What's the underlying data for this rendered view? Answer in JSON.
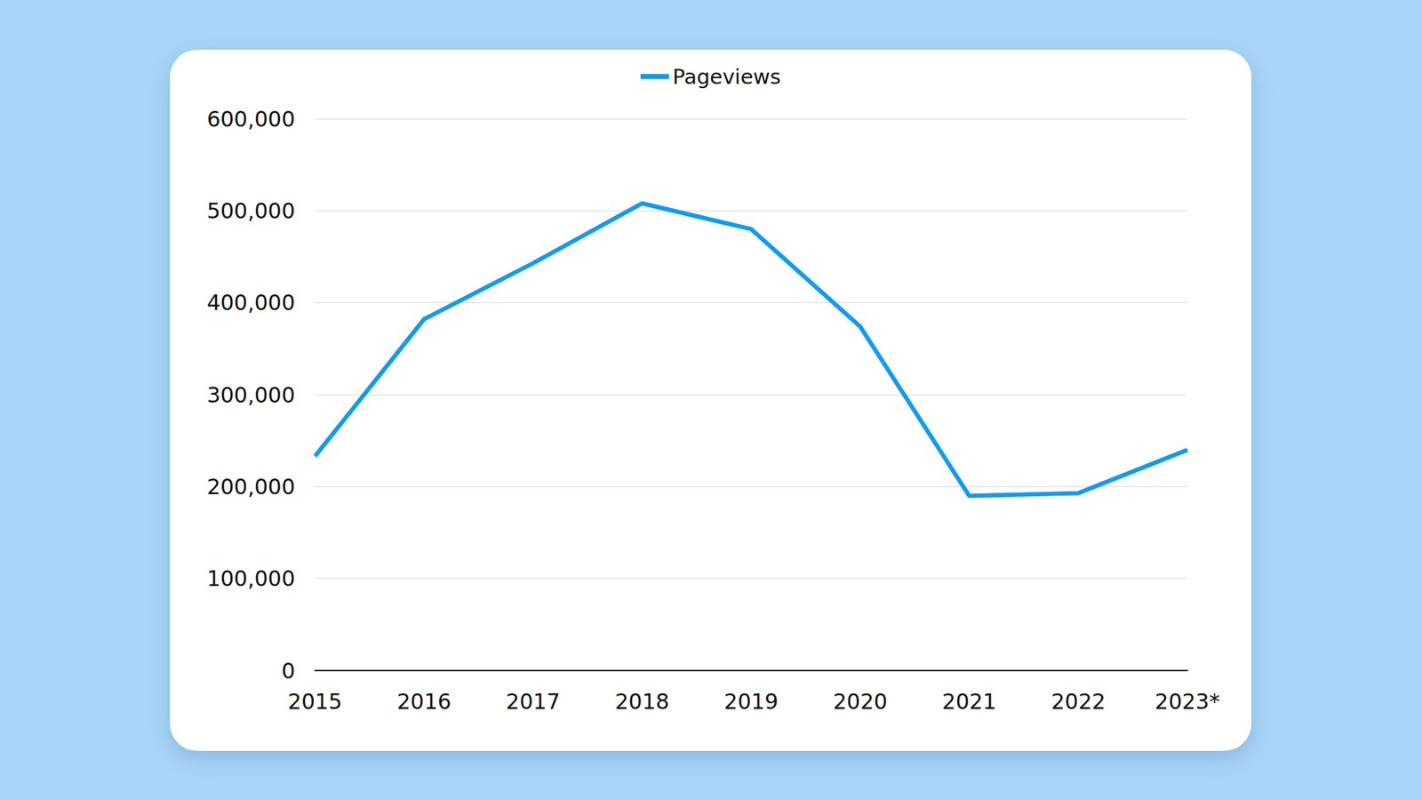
{
  "chart_data": {
    "type": "line",
    "categories": [
      "2015",
      "2016",
      "2017",
      "2018",
      "2019",
      "2020",
      "2021",
      "2022",
      "2023*"
    ],
    "series": [
      {
        "name": "Pageviews",
        "color": "#109bf1",
        "values": [
          233000,
          382000,
          443000,
          508000,
          480000,
          374000,
          190000,
          193000,
          240000
        ]
      }
    ],
    "ylim": [
      0,
      600000
    ],
    "yticks": [
      0,
      {
        "value": 100000,
        "label": "100,000"
      },
      {
        "value": 200000,
        "label": "200,000"
      },
      {
        "value": 300000,
        "label": "300,000"
      },
      {
        "value": 400000,
        "label": "400,000"
      },
      {
        "value": 500000,
        "label": "500,000"
      },
      {
        "value": 600000,
        "label": "600,000"
      }
    ],
    "grid": true,
    "legend": "top"
  }
}
